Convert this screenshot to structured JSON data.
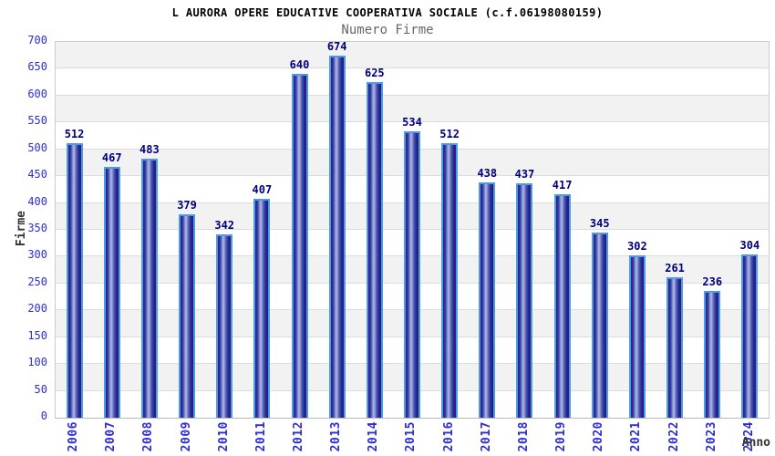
{
  "header": {
    "title": "L AURORA OPERE EDUCATIVE COOPERATIVA SOCIALE (c.f.06198080159)",
    "subtitle": "Numero Firme"
  },
  "chart_data": {
    "type": "bar",
    "title": "L AURORA OPERE EDUCATIVE COOPERATIVA SOCIALE (c.f.06198080159)",
    "subtitle": "Numero Firme",
    "xlabel": "Anno",
    "ylabel": "Firme",
    "categories": [
      "2006",
      "2007",
      "2008",
      "2009",
      "2010",
      "2011",
      "2012",
      "2013",
      "2014",
      "2015",
      "2016",
      "2017",
      "2018",
      "2019",
      "2020",
      "2021",
      "2022",
      "2023",
      "2024"
    ],
    "values": [
      512,
      467,
      483,
      379,
      342,
      407,
      640,
      674,
      625,
      534,
      512,
      438,
      437,
      417,
      345,
      302,
      261,
      236,
      304
    ],
    "ylim": [
      0,
      700
    ],
    "ytick_step": 50,
    "yticks": [
      0,
      50,
      100,
      150,
      200,
      250,
      300,
      350,
      400,
      450,
      500,
      550,
      600,
      650,
      700
    ],
    "grid": true,
    "legend": false,
    "band_striping": "alternating gray/white every 50 units, gray at top (650-700)"
  },
  "style": {
    "tick_color": "#2d2dd0",
    "value_label_color": "#00007d",
    "axis_title_color": "#333333",
    "subtitle_color": "#666666",
    "title_color": "#000000",
    "bar_border_color": "#4e9be4",
    "bar_dark_color": "#23238c",
    "bar_highlight_color": "#b4bae8",
    "band_fill_color": "#f2f2f2",
    "gridline_color": "#dcdcdc",
    "plot_border_color": "#cccccc"
  }
}
